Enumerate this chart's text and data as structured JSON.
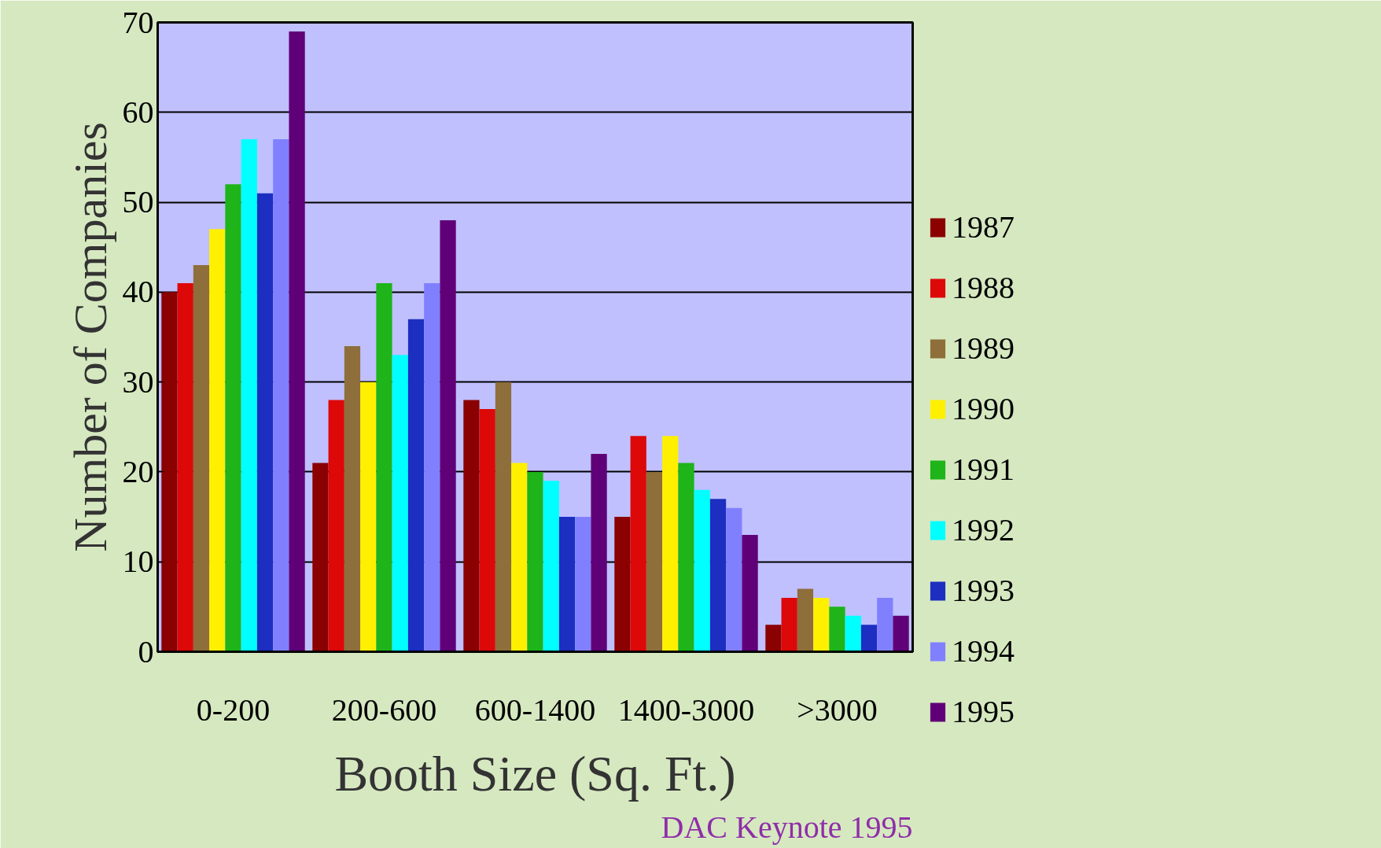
{
  "chart_data": {
    "type": "bar",
    "xlabel": "Booth Size (Sq. Ft.)",
    "ylabel": "Number of Companies",
    "categories": [
      "0-200",
      "200-600",
      "600-1400",
      "1400-3000",
      ">3000"
    ],
    "series": [
      {
        "name": "1987",
        "color": "#8b0000",
        "values": [
          40,
          21,
          28,
          15,
          3
        ]
      },
      {
        "name": "1988",
        "color": "#dd0808",
        "values": [
          41,
          28,
          27,
          24,
          6
        ]
      },
      {
        "name": "1989",
        "color": "#8e6e3a",
        "values": [
          43,
          34,
          30,
          20,
          7
        ]
      },
      {
        "name": "1990",
        "color": "#fff000",
        "values": [
          47,
          30,
          21,
          24,
          6
        ]
      },
      {
        "name": "1991",
        "color": "#1eb41a",
        "values": [
          52,
          41,
          20,
          21,
          5
        ]
      },
      {
        "name": "1992",
        "color": "#00ffff",
        "values": [
          57,
          33,
          19,
          18,
          4
        ]
      },
      {
        "name": "1993",
        "color": "#1c2fc0",
        "values": [
          51,
          37,
          15,
          17,
          3
        ]
      },
      {
        "name": "1994",
        "color": "#8080ff",
        "values": [
          57,
          41,
          15,
          16,
          6
        ]
      },
      {
        "name": "1995",
        "color": "#600078",
        "values": [
          69,
          48,
          22,
          13,
          4
        ]
      }
    ],
    "ylim": [
      0,
      70
    ],
    "yticks": [
      0,
      10,
      20,
      30,
      40,
      50,
      60,
      70
    ],
    "grid": "y",
    "legend": "right",
    "annotations": [
      "DAC Keynote 1995"
    ]
  }
}
